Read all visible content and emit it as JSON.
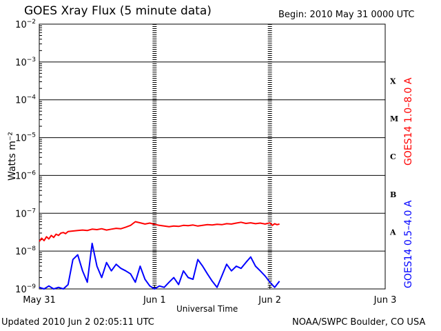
{
  "header": {
    "title": "GOES Xray Flux (5 minute data)",
    "begin": "Begin:  2010 May 31 0000 UTC"
  },
  "footer": {
    "updated": "Updated 2010 Jun  2 02:05:11 UTC",
    "credit": "NOAA/SWPC Boulder, CO USA"
  },
  "chart_data": {
    "type": "line",
    "title": "GOES Xray Flux (5 minute data)",
    "xlabel": "Universal Time",
    "ylabel": "Watts m⁻²",
    "yscale": "log",
    "ylim": [
      1e-09,
      0.01
    ],
    "xlim": [
      0,
      72
    ],
    "x_unit": "hours since 2010 May 31 0000 UTC",
    "x_ticks": [
      {
        "x": 0,
        "label": "May 31"
      },
      {
        "x": 24,
        "label": "Jun 1"
      },
      {
        "x": 48,
        "label": "Jun 2"
      },
      {
        "x": 72,
        "label": "Jun 3"
      }
    ],
    "y_ticks": [
      {
        "exp": -9,
        "label": "10",
        "sup": "−9"
      },
      {
        "exp": -8,
        "label": "10",
        "sup": "−8"
      },
      {
        "exp": -7,
        "label": "10",
        "sup": "−7"
      },
      {
        "exp": -6,
        "label": "10",
        "sup": "−6"
      },
      {
        "exp": -5,
        "label": "10",
        "sup": "−5"
      },
      {
        "exp": -4,
        "label": "10",
        "sup": "−4"
      },
      {
        "exp": -3,
        "label": "10",
        "sup": "−3"
      },
      {
        "exp": -2,
        "label": "10",
        "sup": "−2"
      }
    ],
    "flare_classes": [
      {
        "label": "A",
        "exp": -7.5
      },
      {
        "label": "B",
        "exp": -6.5
      },
      {
        "label": "C",
        "exp": -5.5
      },
      {
        "label": "M",
        "exp": -4.5
      },
      {
        "label": "X",
        "exp": -3.5
      }
    ],
    "grid": true,
    "legend_position": "right",
    "series": [
      {
        "name": "GOES14 1.0–8.0 A",
        "color": "#ff0000",
        "x": [
          0,
          0.5,
          1,
          1.5,
          2,
          2.5,
          3,
          3.5,
          4,
          4.5,
          5,
          5.5,
          6,
          7,
          8,
          9,
          10,
          11,
          12,
          13,
          14,
          15,
          16,
          17,
          18,
          19,
          20,
          21,
          22,
          23,
          24,
          25,
          26,
          27,
          28,
          29,
          30,
          31,
          32,
          33,
          34,
          35,
          36,
          37,
          38,
          39,
          40,
          41,
          42,
          43,
          44,
          45,
          46,
          47,
          48,
          48.5,
          49,
          49.5,
          50
        ],
        "y": [
          1.8e-08,
          2.2e-08,
          1.9e-08,
          2.4e-08,
          2.1e-08,
          2.6e-08,
          2.3e-08,
          2.8e-08,
          2.6e-08,
          3e-08,
          3.1e-08,
          2.9e-08,
          3.3e-08,
          3.4e-08,
          3.5e-08,
          3.6e-08,
          3.5e-08,
          3.8e-08,
          3.7e-08,
          3.9e-08,
          3.6e-08,
          3.8e-08,
          4e-08,
          3.9e-08,
          4.3e-08,
          4.8e-08,
          6e-08,
          5.6e-08,
          5.2e-08,
          5.5e-08,
          5.1e-08,
          4.8e-08,
          4.6e-08,
          4.4e-08,
          4.6e-08,
          4.5e-08,
          4.8e-08,
          4.7e-08,
          4.9e-08,
          4.6e-08,
          4.8e-08,
          5e-08,
          4.9e-08,
          5.1e-08,
          5e-08,
          5.3e-08,
          5.2e-08,
          5.5e-08,
          5.8e-08,
          5.4e-08,
          5.6e-08,
          5.3e-08,
          5.5e-08,
          5.2e-08,
          5.6e-08,
          4.8e-08,
          5.3e-08,
          5e-08,
          5.2e-08
        ]
      },
      {
        "name": "GOES14 0.5–4.0 A",
        "color": "#0000ff",
        "x": [
          0,
          1,
          2,
          3,
          4,
          5,
          6,
          7,
          8,
          9,
          10,
          11,
          12,
          13,
          14,
          15,
          16,
          17,
          18,
          19,
          20,
          21,
          22,
          23,
          24,
          25,
          26,
          27,
          28,
          29,
          30,
          31,
          32,
          33,
          34,
          35,
          36,
          37,
          38,
          39,
          40,
          41,
          42,
          43,
          44,
          45,
          46,
          47,
          48,
          49,
          50
        ],
        "y": [
          1.1e-09,
          1e-09,
          1.2e-09,
          1e-09,
          1.1e-09,
          1e-09,
          1.3e-09,
          6e-09,
          8e-09,
          3e-09,
          1.5e-09,
          1.6e-08,
          4e-09,
          2e-09,
          5e-09,
          3e-09,
          4.5e-09,
          3.5e-09,
          3e-09,
          2.5e-09,
          1.5e-09,
          4e-09,
          1.8e-09,
          1.2e-09,
          1e-09,
          1.2e-09,
          1.1e-09,
          1.5e-09,
          2e-09,
          1.3e-09,
          3e-09,
          2e-09,
          1.8e-09,
          6e-09,
          4e-09,
          2.5e-09,
          1.6e-09,
          1.1e-09,
          2.2e-09,
          4.5e-09,
          3e-09,
          4e-09,
          3.5e-09,
          5e-09,
          7e-09,
          4e-09,
          3e-09,
          2.2e-09,
          1.5e-09,
          1.1e-09,
          1.6e-09
        ]
      }
    ]
  }
}
